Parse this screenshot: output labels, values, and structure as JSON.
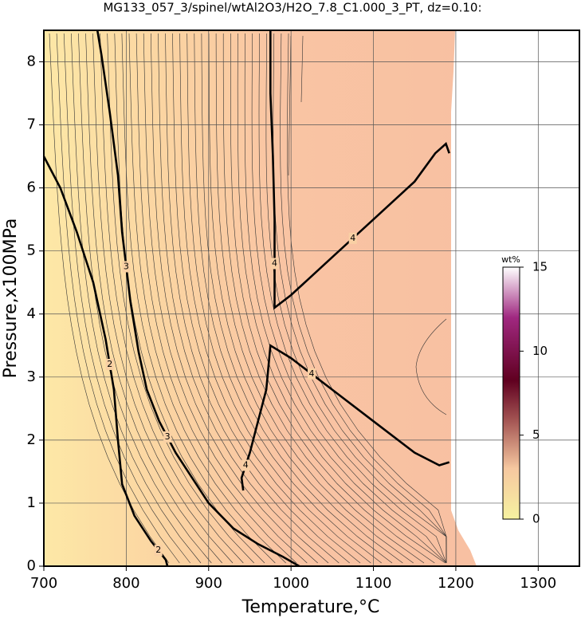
{
  "chart_data": {
    "type": "contour",
    "title": "MG133_057_3/spinel/wtAl2O3/H2O_7.8_C1.000_3_PT, dz=0.10:",
    "x_label": "Temperature,°C",
    "y_label": "Pressure,x100MPa",
    "xlim": [
      700,
      1350
    ],
    "ylim": [
      0,
      8.5
    ],
    "xticks": [
      700,
      800,
      900,
      1000,
      1100,
      1200,
      1300
    ],
    "yticks": [
      0,
      1,
      2,
      3,
      4,
      5,
      6,
      7,
      8
    ],
    "grid": true,
    "contours": [
      {
        "level": 2,
        "x": [
          700,
          720,
          740,
          760,
          775,
          785,
          790,
          795,
          810,
          830,
          848,
          850
        ],
        "y": [
          6.5,
          6.0,
          5.3,
          4.5,
          3.6,
          2.8,
          2.0,
          1.3,
          0.8,
          0.4,
          0.1,
          0
        ]
      },
      {
        "level": 3,
        "x": [
          765,
          770,
          780,
          790,
          795,
          805,
          815,
          825,
          840,
          860,
          880,
          900,
          930,
          960,
          990,
          1010
        ],
        "y": [
          8.5,
          8.1,
          7.2,
          6.2,
          5.3,
          4.2,
          3.4,
          2.8,
          2.3,
          1.8,
          1.4,
          1.0,
          0.6,
          0.35,
          0.15,
          0
        ]
      },
      {
        "level": 4,
        "x": [
          975,
          975,
          978,
          980,
          980,
          1000,
          1050,
          1100,
          1150,
          1175,
          1188,
          1192
        ],
        "y": [
          8.5,
          7.5,
          6.5,
          5.5,
          4.1,
          4.3,
          4.9,
          5.5,
          6.1,
          6.55,
          6.7,
          6.55
        ]
      },
      {
        "level": 4,
        "x": [
          1192,
          1180,
          1150,
          1100,
          1050,
          1000,
          975,
          970,
          958,
          950,
          940,
          942
        ],
        "y": [
          1.65,
          1.6,
          1.8,
          2.3,
          2.8,
          3.3,
          3.5,
          2.8,
          2.2,
          1.8,
          1.4,
          1.2
        ]
      }
    ],
    "colorbar": {
      "label": "wt%",
      "lim": [
        0,
        15
      ],
      "ticks": [
        0,
        5,
        10,
        15
      ]
    }
  }
}
